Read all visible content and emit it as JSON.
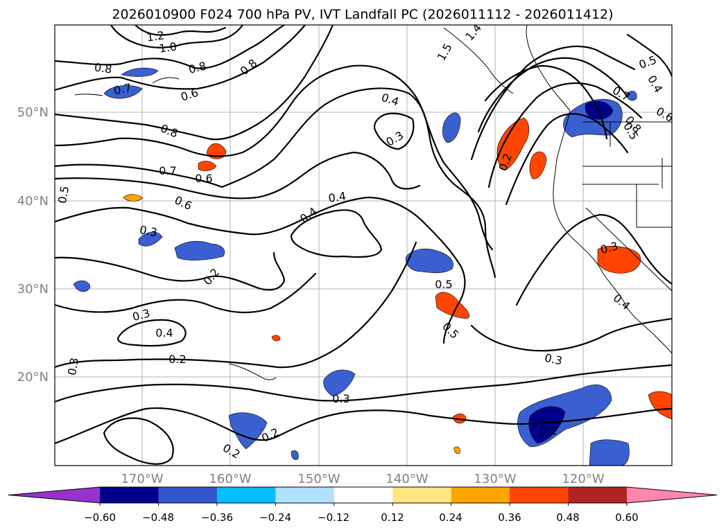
{
  "title": "2026010900 F024 700 hPa PV, IVT Landfall PC (2026011112 - 2026011412)",
  "axes": {
    "lat_labels": [
      "50°N",
      "40°N",
      "30°N",
      "20°N"
    ],
    "lon_labels": [
      "170°W",
      "160°W",
      "150°W",
      "140°W",
      "130°W",
      "120°W"
    ],
    "grid": true
  },
  "colorbar": {
    "ticks": [
      "−0.60",
      "−0.48",
      "−0.36",
      "−0.24",
      "−0.12",
      "0.12",
      "0.24",
      "0.36",
      "0.48",
      "0.60"
    ],
    "colors": [
      "#9932cc",
      "#00008b",
      "#3355cc",
      "#00bfff",
      "#b0e2ff",
      "#ffffff",
      "#ffe680",
      "#ffa500",
      "#ff4500",
      "#b22222",
      "#ff88aa"
    ],
    "extend": "both"
  },
  "contour_labels": [
    "1.2",
    "1.0",
    "0.8",
    "0.8",
    "0.8",
    "0.7",
    "0.6",
    "0.8",
    "0.7",
    "0.6",
    "0.6",
    "0.4",
    "0.3",
    "0.4",
    "0.4",
    "0.5",
    "0.3",
    "0.2",
    "0.3",
    "0.4",
    "0.2",
    "0.3",
    "0.3",
    "0.2",
    "0.2",
    "0.5",
    "0.5",
    "0.3",
    "0.2",
    "0.3",
    "0.4",
    "0.2",
    "0.5",
    "0.4",
    "0.7",
    "0.8",
    "0.6",
    "0.5",
    "1.4",
    "1.5"
  ]
}
